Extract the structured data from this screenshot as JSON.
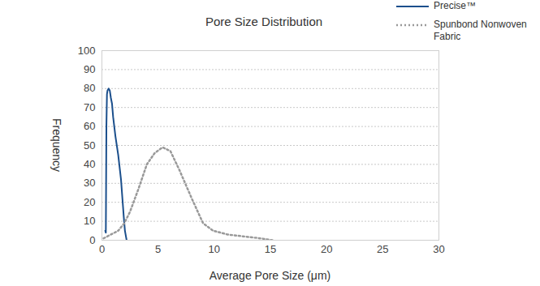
{
  "chart_data": {
    "type": "line",
    "title": "Pore Size Distribution",
    "x_label": "Average Pore Size (μm)",
    "y_label": "Frequency",
    "xlim": [
      0,
      30
    ],
    "xticks": [
      0,
      5,
      10,
      15,
      20,
      25,
      30
    ],
    "ylim": [
      0,
      100
    ],
    "yticks": [
      0,
      10,
      20,
      30,
      40,
      50,
      60,
      70,
      80,
      90,
      100
    ],
    "grid": true,
    "legend": "top right",
    "series": [
      {
        "name": "Precise™",
        "color": "#1b4f8c",
        "line_style": "solid",
        "x": [
          0.3,
          0.35,
          0.4,
          0.45,
          0.5,
          0.6,
          0.7,
          0.8,
          0.9,
          1.0,
          1.2,
          1.45,
          1.7,
          1.85,
          1.95,
          2.05,
          2.2
        ],
        "values": [
          5,
          4,
          60,
          77,
          79,
          80,
          79,
          75,
          72,
          65,
          55,
          45,
          32,
          20,
          12,
          5,
          0
        ]
      },
      {
        "name": "Spunbond Nonwoven Fabric",
        "color": "#999999",
        "line_style": "dotted",
        "x": [
          0.15,
          0.8,
          1.45,
          2.0,
          2.5,
          3.25,
          4.0,
          4.7,
          5.4,
          6.1,
          6.9,
          8.0,
          9.0,
          9.9,
          11.2,
          12.6,
          14.1,
          15.2
        ],
        "values": [
          1,
          3,
          5,
          9,
          15,
          27,
          40,
          46,
          49,
          47,
          37,
          22,
          9,
          5,
          3,
          2,
          1,
          0
        ]
      }
    ]
  }
}
